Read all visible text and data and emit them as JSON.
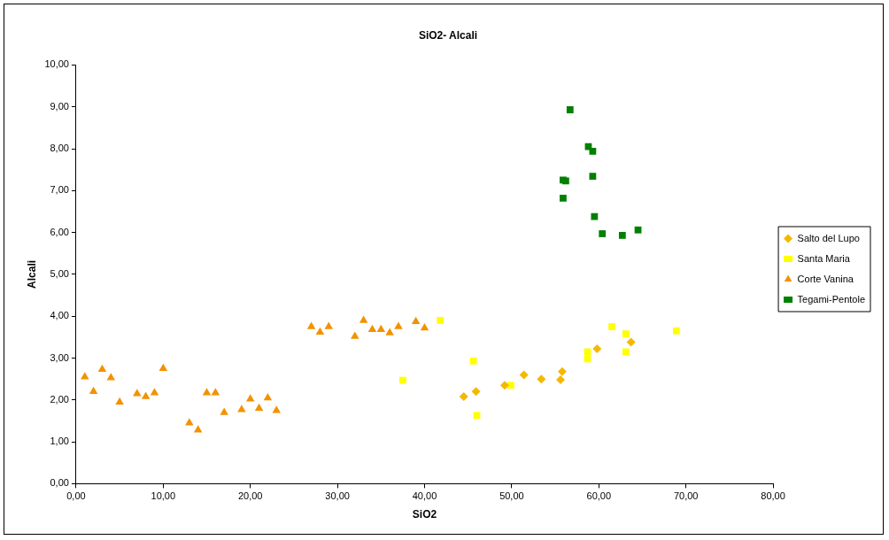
{
  "chart_data": {
    "type": "scatter",
    "title": "SiO2- Alcali",
    "xlabel": "SiO2",
    "ylabel": "Alcali",
    "xlim": [
      0,
      80
    ],
    "xticks": [
      {
        "value": 0,
        "label": "0,00"
      },
      {
        "value": 10,
        "label": "10,00"
      },
      {
        "value": 20,
        "label": "20,00"
      },
      {
        "value": 30,
        "label": "30,00"
      },
      {
        "value": 40,
        "label": "40,00"
      },
      {
        "value": 50,
        "label": "50,00"
      },
      {
        "value": 60,
        "label": "60,00"
      },
      {
        "value": 70,
        "label": "70,00"
      },
      {
        "value": 80,
        "label": "80,00"
      }
    ],
    "ylim": [
      0,
      10
    ],
    "yticks": [
      {
        "value": 0,
        "label": "0,00"
      },
      {
        "value": 1,
        "label": "1,00"
      },
      {
        "value": 2,
        "label": "2,00"
      },
      {
        "value": 3,
        "label": "3,00"
      },
      {
        "value": 4,
        "label": "4,00"
      },
      {
        "value": 5,
        "label": "5,00"
      },
      {
        "value": 6,
        "label": "6,00"
      },
      {
        "value": 7,
        "label": "7,00"
      },
      {
        "value": 8,
        "label": "8,00"
      },
      {
        "value": 9,
        "label": "9,00"
      },
      {
        "value": 10,
        "label": "10,00"
      }
    ],
    "grid": false,
    "legend": "right",
    "series": [
      {
        "name": "Salto del Lupo",
        "color": "#f5b800",
        "marker": "diamond",
        "x": [
          44.5,
          45.9,
          49.2,
          51.4,
          53.4,
          55.6,
          55.8,
          59.8,
          63.7
        ],
        "values": [
          2.08,
          2.2,
          2.35,
          2.6,
          2.5,
          2.48,
          2.68,
          3.22,
          3.38
        ]
      },
      {
        "name": "Santa Maria",
        "color": "#ffff00",
        "marker": "square",
        "x": [
          41.8,
          37.5,
          45.6,
          46.0,
          49.9,
          58.7,
          58.7,
          61.5,
          63.1,
          63.1,
          68.9
        ],
        "values": [
          3.9,
          2.47,
          2.93,
          1.63,
          2.35,
          2.98,
          3.15,
          3.75,
          3.58,
          3.15,
          3.65
        ]
      },
      {
        "name": "Corte Vanina",
        "color": "#f39200",
        "marker": "triangle",
        "x": [
          1,
          2,
          3,
          4,
          5,
          7,
          8,
          9,
          10,
          13,
          14,
          15,
          16,
          17,
          19,
          20,
          21,
          22,
          23,
          27,
          28,
          29,
          32,
          33,
          34,
          35,
          36,
          37,
          39,
          40
        ],
        "values": [
          2.55,
          2.2,
          2.73,
          2.53,
          1.95,
          2.15,
          2.08,
          2.17,
          2.75,
          1.45,
          1.28,
          2.17,
          2.17,
          1.7,
          1.77,
          2.02,
          1.8,
          2.05,
          1.75,
          3.75,
          3.62,
          3.75,
          3.52,
          3.9,
          3.68,
          3.68,
          3.6,
          3.75,
          3.87,
          3.72
        ]
      },
      {
        "name": "Tegami-Pentole",
        "color": "#008000",
        "marker": "square",
        "x": [
          56.7,
          58.8,
          59.3,
          59.3,
          55.9,
          56.2,
          55.9,
          59.5,
          60.4,
          62.7,
          64.5
        ],
        "values": [
          8.93,
          8.05,
          7.94,
          7.34,
          7.25,
          7.23,
          6.82,
          6.38,
          5.97,
          5.93,
          6.06
        ]
      }
    ]
  }
}
